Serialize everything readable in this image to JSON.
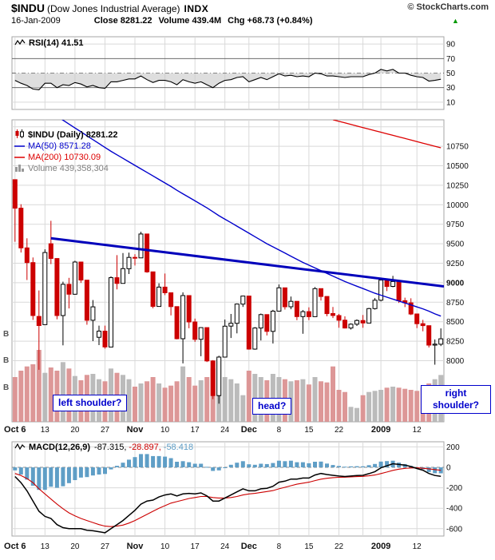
{
  "header": {
    "symbol": "$INDU",
    "name": "(Dow Jones Industrial Average)",
    "exchange": "INDX",
    "copyright": "© StockCharts.com",
    "date": "16-Jan-2009",
    "close_label": "Close",
    "close_value": "8281.22",
    "volume_label": "Volume",
    "volume_value": "439.4M",
    "chg_label": "Chg",
    "chg_value": "+68.73 (+0.84%)",
    "chg_direction_icon": "▲"
  },
  "rsi_panel": {
    "legend": "RSI(14) 41.51",
    "axis_labels": [
      90,
      70,
      50,
      30,
      10
    ]
  },
  "main_panel": {
    "legend_symbol": "$INDU (Daily) 8281.22",
    "legend_ma50": "MA(50) 8571.28",
    "legend_ma200": "MA(200) 10730.09",
    "legend_volume": "Volume 439,358,304",
    "axis_labels": [
      10750,
      10500,
      10250,
      10000,
      9750,
      9500,
      9250,
      9000,
      8750,
      8500,
      8250,
      8000
    ],
    "bold_axis_label": 9000,
    "left_axis_labels": [
      "B",
      "B",
      "B"
    ],
    "annotations": [
      "left shoulder?",
      "head?",
      "right shoulder?"
    ]
  },
  "macd_panel": {
    "legend_label": "MACD(12,26,9)",
    "macd_value": "-87.315,",
    "signal_value": "-28.897,",
    "hist_value": "-58.418",
    "axis_labels": [
      200,
      0,
      -200,
      -400,
      -600
    ]
  },
  "colors": {
    "grid": "#d9d9d9",
    "down": "#cc0000",
    "volume_up": "#b4b4b4",
    "volume_down": "#d98c8c",
    "ma50": "#0000cc",
    "ma200": "#dd0000",
    "trendline": "#0000bb",
    "signal": "#cc0000",
    "histogram": "#5f9ec6",
    "rsi_fill": "#c8c8c8",
    "annotation": "#0000cc",
    "up_green": "#009900"
  },
  "chart_data": {
    "type": "candlestick+indicators",
    "title": "$INDU (Dow Jones Industrial Average) INDX",
    "timeframe": "Daily, 6-Oct-2008 to 16-Jan-2009",
    "price_axis_range": [
      7220,
      11090
    ],
    "rsi_range": [
      0,
      100
    ],
    "macd_range": [
      -650,
      280
    ],
    "grid_indices": [
      0,
      5,
      10,
      15,
      20,
      25,
      30,
      35,
      39,
      44,
      49,
      54,
      58,
      61,
      67
    ],
    "x_ticks": [
      {
        "index": 0,
        "label": "Oct 6",
        "bold": true
      },
      {
        "index": 5,
        "label": "13"
      },
      {
        "index": 10,
        "label": "20"
      },
      {
        "index": 15,
        "label": "27"
      },
      {
        "index": 20,
        "label": "Nov",
        "bold": true
      },
      {
        "index": 25,
        "label": "10"
      },
      {
        "index": 30,
        "label": "17"
      },
      {
        "index": 35,
        "label": "24"
      },
      {
        "index": 39,
        "label": "Dec",
        "bold": true
      },
      {
        "index": 44,
        "label": "8"
      },
      {
        "index": 49,
        "label": "15"
      },
      {
        "index": 54,
        "label": "22"
      },
      {
        "index": 61,
        "label": "2009",
        "bold": true
      },
      {
        "index": 67,
        "label": "12"
      }
    ],
    "dates": [
      "10/6",
      "10/7",
      "10/8",
      "10/9",
      "10/10",
      "10/13",
      "10/14",
      "10/15",
      "10/16",
      "10/17",
      "10/20",
      "10/21",
      "10/22",
      "10/23",
      "10/24",
      "10/27",
      "10/28",
      "10/29",
      "10/30",
      "10/31",
      "11/3",
      "11/4",
      "11/5",
      "11/6",
      "11/7",
      "11/10",
      "11/11",
      "11/12",
      "11/13",
      "11/14",
      "11/17",
      "11/18",
      "11/19",
      "11/20",
      "11/21",
      "11/24",
      "11/25",
      "11/26",
      "11/28",
      "12/1",
      "12/2",
      "12/3",
      "12/4",
      "12/5",
      "12/8",
      "12/9",
      "12/10",
      "12/11",
      "12/12",
      "12/15",
      "12/16",
      "12/17",
      "12/18",
      "12/19",
      "12/22",
      "12/23",
      "12/24",
      "12/26",
      "12/29",
      "12/30",
      "12/31",
      "1/2",
      "1/5",
      "1/6",
      "1/7",
      "1/8",
      "1/9",
      "1/12",
      "1/13",
      "1/14",
      "1/15",
      "1/16"
    ],
    "open": [
      10322,
      9956,
      9447,
      9258,
      8568,
      8462,
      9500,
      9310,
      8578,
      8979,
      8852,
      9265,
      9033,
      8519,
      8300,
      8379,
      8176,
      9065,
      8991,
      9180,
      9325,
      9319,
      9625,
      9139,
      8696,
      8944,
      8871,
      8694,
      8282,
      8835,
      8497,
      8274,
      8424,
      7997,
      7552,
      8046,
      8443,
      8479,
      8726,
      8829,
      8149,
      8419,
      8591,
      8376,
      8635,
      8934,
      8691,
      8761,
      8565,
      8629,
      8564,
      8924,
      8824,
      8604,
      8579,
      8519,
      8419,
      8468,
      8515,
      8483,
      8668,
      8776,
      9034,
      8952,
      9015,
      8769,
      8742,
      8599,
      8474,
      8449,
      8200,
      8212
    ],
    "high": [
      10322,
      10006,
      9570,
      9324,
      8901,
      9428,
      9794,
      9310,
      9013,
      9062,
      9282,
      9265,
      9033,
      8778,
      8450,
      8450,
      9082,
      9353,
      9380,
      9385,
      9365,
      9654,
      9625,
      9139,
      8993,
      9118,
      8871,
      8694,
      8876,
      8835,
      8540,
      8430,
      8424,
      8007,
      8064,
      8528,
      8599,
      8735,
      8832,
      8829,
      8430,
      8605,
      8591,
      8653,
      8977,
      8934,
      8823,
      8761,
      8650,
      8684,
      8944,
      8924,
      8824,
      8689,
      8599,
      8569,
      8480,
      8531,
      8586,
      8677,
      8803,
      9044,
      9034,
      9088,
      9015,
      8808,
      8800,
      8599,
      8524,
      8449,
      8273,
      8414
    ],
    "low": [
      9526,
      9387,
      9035,
      8523,
      7883,
      8462,
      9239,
      8531,
      8197,
      8670,
      8845,
      8998,
      8461,
      8251,
      8200,
      8155,
      8175,
      8915,
      8991,
      9112,
      9220,
      9319,
      9127,
      8672,
      8696,
      8841,
      8581,
      8274,
      7965,
      8416,
      8242,
      8057,
      7983,
      7507,
      7449,
      8046,
      8291,
      8350,
      8690,
      8141,
      8140,
      8259,
      8324,
      8220,
      8635,
      8656,
      8660,
      8519,
      8345,
      8520,
      8564,
      8770,
      8570,
      8547,
      8423,
      8412,
      8400,
      8446,
      8422,
      8483,
      8656,
      8760,
      8892,
      8942,
      8741,
      8687,
      8585,
      8418,
      8377,
      8169,
      7949,
      8187
    ],
    "close": [
      9956,
      9447,
      9258,
      8579,
      8451,
      9387,
      9311,
      8578,
      8979,
      8852,
      9265,
      9033,
      8519,
      8691,
      8379,
      8176,
      9065,
      8991,
      9180,
      9325,
      9319,
      9625,
      9139,
      8696,
      8944,
      8871,
      8694,
      8282,
      8835,
      8497,
      8274,
      8424,
      7997,
      7552,
      8046,
      8443,
      8479,
      8726,
      8829,
      8149,
      8419,
      8591,
      8376,
      8635,
      8934,
      8691,
      8761,
      8565,
      8629,
      8564,
      8924,
      8824,
      8604,
      8579,
      8519,
      8419,
      8468,
      8515,
      8483,
      8668,
      8776,
      9034,
      8952,
      9015,
      8769,
      8742,
      8599,
      8474,
      8449,
      8200,
      8212,
      8281.22
    ],
    "volume_m": [
      420,
      480,
      520,
      540,
      675,
      460,
      510,
      480,
      560,
      500,
      430,
      390,
      440,
      450,
      400,
      380,
      500,
      460,
      440,
      400,
      330,
      360,
      380,
      420,
      360,
      320,
      340,
      380,
      520,
      420,
      340,
      390,
      420,
      500,
      590,
      420,
      400,
      360,
      250,
      480,
      450,
      420,
      390,
      450,
      420,
      400,
      380,
      390,
      400,
      350,
      420,
      380,
      370,
      520,
      300,
      280,
      140,
      130,
      250,
      280,
      290,
      300,
      320,
      330,
      320,
      310,
      300,
      290,
      320,
      360,
      400,
      439.4
    ],
    "rsi14": [
      40,
      36,
      33,
      28,
      27,
      36,
      36,
      30,
      34,
      33,
      37,
      35,
      31,
      33,
      30,
      29,
      38,
      38,
      40,
      42,
      42,
      46,
      41,
      37,
      40,
      40,
      38,
      34,
      41,
      38,
      36,
      38,
      34,
      30,
      36,
      40,
      41,
      44,
      45,
      38,
      41,
      44,
      41,
      45,
      49,
      46,
      47,
      45,
      46,
      45,
      50,
      49,
      46,
      46,
      45,
      44,
      45,
      45,
      45,
      48,
      50,
      55,
      53,
      55,
      50,
      50,
      47,
      45,
      44,
      39,
      40,
      41.51
    ],
    "ma50": [
      11470,
      11425,
      11380,
      11330,
      11280,
      11230,
      11185,
      11135,
      11085,
      11035,
      10985,
      10935,
      10885,
      10835,
      10785,
      10735,
      10685,
      10640,
      10595,
      10550,
      10505,
      10460,
      10415,
      10370,
      10325,
      10280,
      10235,
      10185,
      10140,
      10095,
      10050,
      10005,
      9960,
      9910,
      9860,
      9815,
      9770,
      9725,
      9680,
      9635,
      9590,
      9545,
      9500,
      9460,
      9420,
      9380,
      9340,
      9300,
      9260,
      9225,
      9190,
      9155,
      9120,
      9085,
      9050,
      9015,
      8985,
      8955,
      8925,
      8895,
      8865,
      8840,
      8815,
      8790,
      8765,
      8740,
      8715,
      8690,
      8665,
      8635,
      8600,
      8571.28
    ],
    "ma200_start_index": 53,
    "ma200": [
      11090,
      11070,
      11050,
      11030,
      11010,
      10990,
      10970,
      10950,
      10930,
      10910,
      10890,
      10870,
      10850,
      10830,
      10810,
      10790,
      10770,
      10750,
      10730.09
    ],
    "macd": [
      -90,
      -150,
      -230,
      -330,
      -430,
      -480,
      -500,
      -560,
      -590,
      -600,
      -600,
      -600,
      -615,
      -620,
      -630,
      -640,
      -600,
      -560,
      -520,
      -470,
      -420,
      -360,
      -330,
      -320,
      -290,
      -270,
      -260,
      -280,
      -260,
      -255,
      -260,
      -250,
      -280,
      -330,
      -330,
      -300,
      -270,
      -240,
      -210,
      -230,
      -230,
      -210,
      -205,
      -185,
      -145,
      -135,
      -115,
      -115,
      -105,
      -105,
      -75,
      -60,
      -70,
      -78,
      -85,
      -90,
      -85,
      -80,
      -78,
      -62,
      -42,
      -5,
      15,
      35,
      28,
      22,
      8,
      -12,
      -28,
      -60,
      -80,
      -87.315
    ],
    "macd_signal": [
      -60,
      -80,
      -110,
      -150,
      -210,
      -260,
      -310,
      -360,
      -405,
      -445,
      -475,
      -500,
      -520,
      -540,
      -560,
      -575,
      -580,
      -575,
      -565,
      -545,
      -520,
      -490,
      -460,
      -430,
      -400,
      -375,
      -350,
      -335,
      -320,
      -305,
      -295,
      -285,
      -285,
      -295,
      -300,
      -300,
      -295,
      -285,
      -270,
      -260,
      -255,
      -245,
      -237,
      -227,
      -210,
      -195,
      -180,
      -165,
      -155,
      -145,
      -130,
      -116,
      -107,
      -101,
      -98,
      -96,
      -94,
      -91,
      -88,
      -83,
      -75,
      -61,
      -46,
      -30,
      -18,
      -10,
      -6,
      -5,
      -9,
      -15,
      -22,
      -28.897
    ],
    "trendline": {
      "start_index": 6,
      "start_price": 9570,
      "end_index": 71,
      "end_price": 8958
    }
  }
}
